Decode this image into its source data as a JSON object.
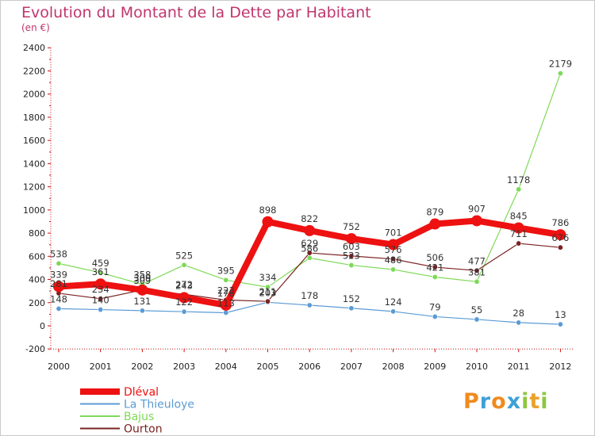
{
  "title": "Evolution du Montant de la Dette par Habitant",
  "subtitle": "(en €)",
  "logo": {
    "text": "Proxiti",
    "letter_colors": [
      "#f08a1e",
      "#3ea0d8",
      "#f08a1e",
      "#3ea0d8",
      "#8dc63f",
      "#e9a22a",
      "#8dc63f"
    ]
  },
  "chart_data": {
    "type": "line",
    "title": "Evolution du Montant de la Dette par Habitant",
    "subtitle": "(en €)",
    "x": [
      2000,
      2001,
      2002,
      2003,
      2004,
      2005,
      2006,
      2007,
      2008,
      2009,
      2010,
      2011,
      2012
    ],
    "ylim": [
      -200,
      2400
    ],
    "yticks": [
      -200,
      0,
      200,
      400,
      600,
      800,
      1000,
      1200,
      1400,
      1600,
      1800,
      2000,
      2200,
      2400
    ],
    "grid": false,
    "legend_position": "bottom-left",
    "series": [
      {
        "name": "Dléval",
        "color": "#ee1111",
        "values": [
          339,
          361,
          309,
          243,
          178,
          898,
          822,
          752,
          701,
          879,
          907,
          845,
          786
        ]
      },
      {
        "name": "La Thieuloye",
        "color": "#5b9bd5",
        "values": [
          148,
          140,
          131,
          122,
          113,
          203,
          178,
          152,
          124,
          79,
          55,
          28,
          13
        ]
      },
      {
        "name": "Bajus",
        "color": "#7ed957",
        "values": [
          538,
          459,
          358,
          525,
          395,
          334,
          586,
          523,
          486,
          421,
          381,
          1178,
          2179
        ]
      },
      {
        "name": "Ourton",
        "color": "#7b2121",
        "values": [
          281,
          234,
          309,
          272,
          223,
          211,
          629,
          603,
          576,
          506,
          477,
          711,
          676
        ]
      }
    ]
  }
}
